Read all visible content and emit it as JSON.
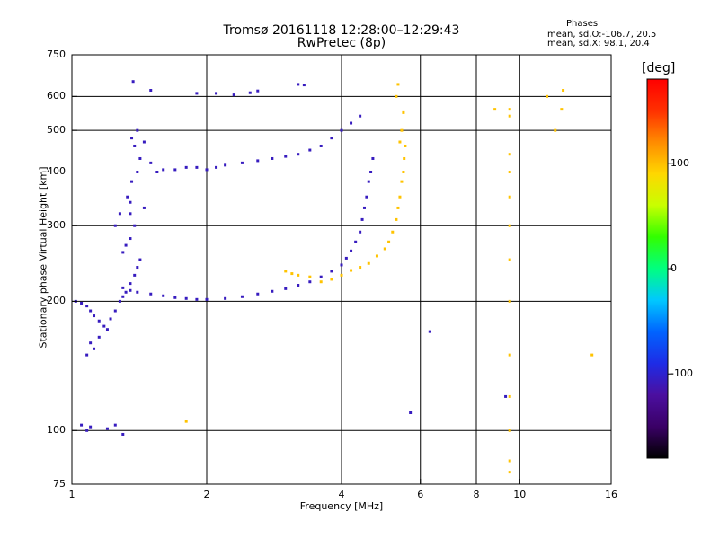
{
  "header": {
    "title_line1": "Tromsø 20161118 12:28:00–12:29:43",
    "title_line2": "RwPretec (8p)"
  },
  "phase_box": {
    "title": "Phases",
    "o_line": "mean, sd,O:-106.7, 20.5",
    "x_line": "mean, sd,X:  98.1, 20.4"
  },
  "colors": {
    "axis": "#000000",
    "grid": "#000000",
    "colorbar": [
      "#000000",
      "#3a0066",
      "#4b0fa0",
      "#1e2ce6",
      "#0064ff",
      "#00c8ff",
      "#00ff80",
      "#32ff00",
      "#c8ff00",
      "#ffd700",
      "#ff8c00",
      "#ff3000",
      "#ff0000"
    ]
  },
  "chart_data": {
    "type": "scatter",
    "title": "Tromsø 20161118 12:28:00–12:29:43",
    "subtitle": "RwPretec (8p)",
    "xlabel": "Frequency [MHz]",
    "ylabel": "Stationary phase Virtual Height [km]",
    "xscale": "log",
    "yscale": "log",
    "xlim": [
      1,
      16
    ],
    "ylim": [
      75,
      750
    ],
    "xticks": [
      1,
      2,
      4,
      6,
      8,
      10,
      16
    ],
    "xtick_labels": [
      "1",
      "2",
      "4",
      "6",
      "8",
      "10",
      "16"
    ],
    "yticks": [
      75,
      100,
      200,
      300,
      400,
      500,
      600,
      750
    ],
    "ytick_labels": [
      "75",
      "100",
      "200",
      "300",
      "400",
      "500",
      "600",
      "750"
    ],
    "grid": true,
    "colorbar": {
      "label": "[deg]",
      "range": [
        -180,
        180
      ],
      "ticks": [
        -100,
        0,
        100
      ],
      "tick_labels": [
        "-100",
        "0",
        "100"
      ]
    },
    "series": [
      {
        "mode": "O",
        "color_phase": -106.7,
        "points": [
          [
            1.02,
            200
          ],
          [
            1.05,
            198
          ],
          [
            1.08,
            195
          ],
          [
            1.1,
            190
          ],
          [
            1.12,
            185
          ],
          [
            1.15,
            180
          ],
          [
            1.18,
            175
          ],
          [
            1.2,
            172
          ],
          [
            1.1,
            160
          ],
          [
            1.12,
            155
          ],
          [
            1.08,
            150
          ],
          [
            1.15,
            165
          ],
          [
            1.22,
            182
          ],
          [
            1.25,
            190
          ],
          [
            1.28,
            200
          ],
          [
            1.3,
            205
          ],
          [
            1.32,
            210
          ],
          [
            1.35,
            220
          ],
          [
            1.38,
            230
          ],
          [
            1.4,
            240
          ],
          [
            1.42,
            250
          ],
          [
            1.3,
            260
          ],
          [
            1.32,
            270
          ],
          [
            1.35,
            280
          ],
          [
            1.38,
            300
          ],
          [
            1.35,
            320
          ],
          [
            1.33,
            350
          ],
          [
            1.36,
            380
          ],
          [
            1.4,
            400
          ],
          [
            1.42,
            430
          ],
          [
            1.38,
            460
          ],
          [
            1.36,
            480
          ],
          [
            1.4,
            500
          ],
          [
            1.45,
            470
          ],
          [
            1.5,
            420
          ],
          [
            1.55,
            400
          ],
          [
            1.6,
            405
          ],
          [
            1.7,
            405
          ],
          [
            1.8,
            410
          ],
          [
            1.9,
            410
          ],
          [
            2.0,
            405
          ],
          [
            2.1,
            410
          ],
          [
            2.2,
            415
          ],
          [
            2.4,
            420
          ],
          [
            2.6,
            425
          ],
          [
            2.8,
            430
          ],
          [
            3.0,
            435
          ],
          [
            3.2,
            440
          ],
          [
            3.4,
            450
          ],
          [
            3.6,
            460
          ],
          [
            3.8,
            480
          ],
          [
            4.0,
            500
          ],
          [
            4.2,
            520
          ],
          [
            4.4,
            540
          ],
          [
            1.35,
            340
          ],
          [
            1.28,
            320
          ],
          [
            1.25,
            300
          ],
          [
            1.45,
            330
          ],
          [
            1.3,
            215
          ],
          [
            1.35,
            212
          ],
          [
            1.4,
            210
          ],
          [
            1.5,
            208
          ],
          [
            1.6,
            206
          ],
          [
            1.7,
            204
          ],
          [
            1.8,
            203
          ],
          [
            1.9,
            202
          ],
          [
            2.0,
            202
          ],
          [
            2.2,
            203
          ],
          [
            2.4,
            205
          ],
          [
            2.6,
            208
          ],
          [
            2.8,
            211
          ],
          [
            3.0,
            214
          ],
          [
            3.2,
            218
          ],
          [
            3.4,
            222
          ],
          [
            3.6,
            228
          ],
          [
            3.8,
            235
          ],
          [
            4.0,
            243
          ],
          [
            4.1,
            252
          ],
          [
            4.2,
            262
          ],
          [
            4.3,
            275
          ],
          [
            4.4,
            290
          ],
          [
            4.45,
            310
          ],
          [
            4.5,
            330
          ],
          [
            4.55,
            350
          ],
          [
            4.6,
            380
          ],
          [
            4.65,
            400
          ],
          [
            4.7,
            430
          ],
          [
            1.9,
            610
          ],
          [
            2.1,
            610
          ],
          [
            2.3,
            605
          ],
          [
            2.5,
            612
          ],
          [
            2.6,
            618
          ],
          [
            3.2,
            640
          ],
          [
            3.3,
            638
          ],
          [
            1.5,
            620
          ],
          [
            1.37,
            650
          ],
          [
            1.05,
            103
          ],
          [
            1.08,
            100
          ],
          [
            1.1,
            102
          ],
          [
            1.2,
            101
          ],
          [
            1.25,
            103
          ],
          [
            1.3,
            98
          ],
          [
            6.3,
            170
          ],
          [
            5.7,
            110
          ],
          [
            9.3,
            120
          ]
        ]
      },
      {
        "mode": "X",
        "color_phase": 98.1,
        "points": [
          [
            3.0,
            235
          ],
          [
            3.1,
            232
          ],
          [
            3.2,
            230
          ],
          [
            3.4,
            228
          ],
          [
            3.6,
            222
          ],
          [
            3.8,
            225
          ],
          [
            4.0,
            230
          ],
          [
            4.2,
            236
          ],
          [
            4.4,
            240
          ],
          [
            4.6,
            245
          ],
          [
            4.8,
            255
          ],
          [
            5.0,
            265
          ],
          [
            5.1,
            275
          ],
          [
            5.2,
            290
          ],
          [
            5.3,
            310
          ],
          [
            5.35,
            330
          ],
          [
            5.4,
            350
          ],
          [
            5.45,
            380
          ],
          [
            5.5,
            400
          ],
          [
            5.52,
            430
          ],
          [
            5.55,
            460
          ],
          [
            5.4,
            470
          ],
          [
            5.45,
            500
          ],
          [
            5.5,
            550
          ],
          [
            5.3,
            600
          ],
          [
            5.35,
            640
          ],
          [
            9.5,
            440
          ],
          [
            9.5,
            400
          ],
          [
            9.5,
            350
          ],
          [
            9.5,
            300
          ],
          [
            9.5,
            250
          ],
          [
            9.5,
            200
          ],
          [
            9.5,
            150
          ],
          [
            9.5,
            120
          ],
          [
            9.5,
            100
          ],
          [
            9.5,
            85
          ],
          [
            9.5,
            80
          ],
          [
            9.5,
            540
          ],
          [
            9.5,
            560
          ],
          [
            8.8,
            560
          ],
          [
            12.5,
            620
          ],
          [
            12.4,
            560
          ],
          [
            12.0,
            500
          ],
          [
            11.5,
            600
          ],
          [
            14.5,
            150
          ],
          [
            1.8,
            105
          ]
        ]
      }
    ]
  }
}
